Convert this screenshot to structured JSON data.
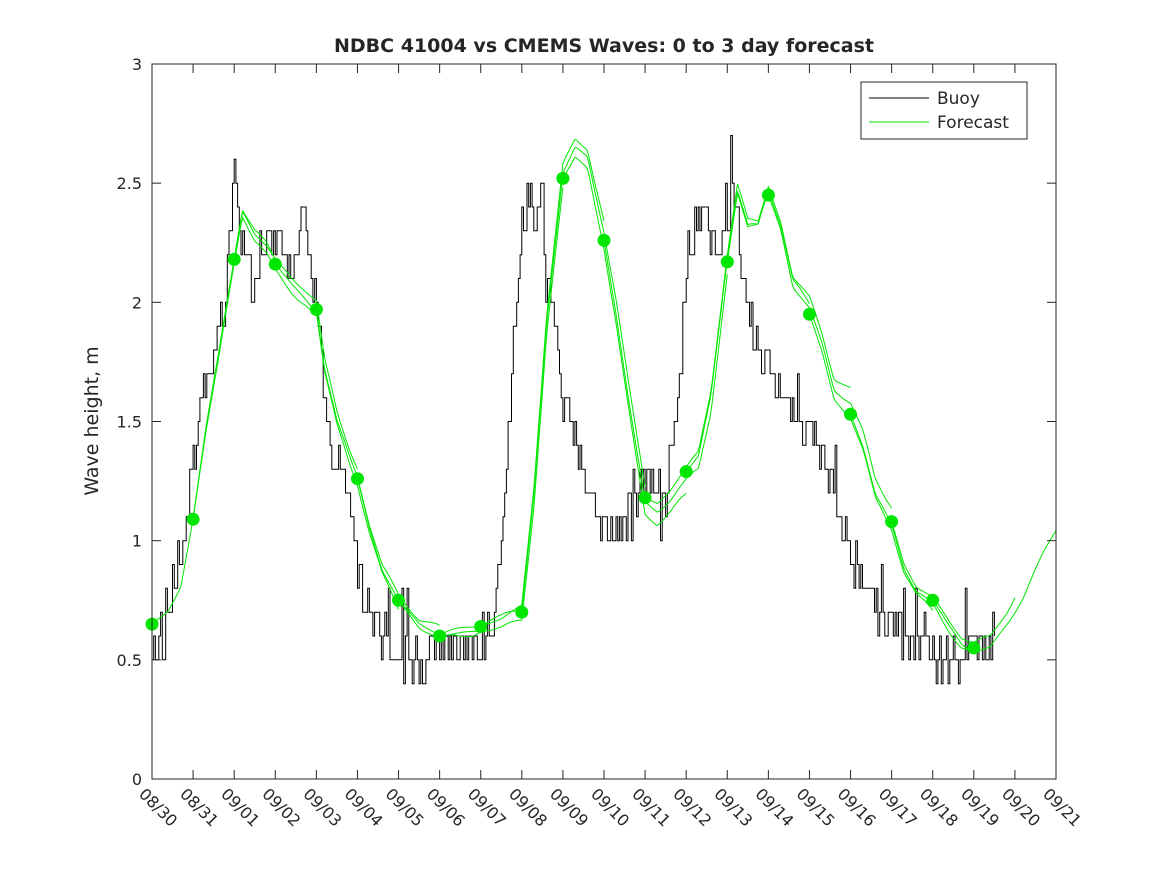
{
  "chart_data": {
    "type": "line",
    "title": "NDBC 41004 vs CMEMS Waves: 0 to 3 day forecast",
    "xlabel": "",
    "ylabel": "Wave height, m",
    "x_ticks": [
      "08/30",
      "08/31",
      "09/01",
      "09/02",
      "09/03",
      "09/04",
      "09/05",
      "09/06",
      "09/07",
      "09/08",
      "09/09",
      "09/10",
      "09/11",
      "09/12",
      "09/13",
      "09/14",
      "09/15",
      "09/16",
      "09/17",
      "09/18",
      "09/19",
      "09/20",
      "09/21"
    ],
    "x_range_days": [
      0,
      22
    ],
    "ylim": [
      0,
      3
    ],
    "y_ticks": [
      0,
      0.5,
      1,
      1.5,
      2,
      2.5,
      3
    ],
    "grid": false,
    "legend": {
      "placement": "top-right",
      "entries": [
        {
          "label": "Buoy",
          "color": "#000000"
        },
        {
          "label": "Forecast",
          "color": "#00e600"
        }
      ]
    },
    "colors": {
      "buoy": "#000000",
      "forecast": "#00e600",
      "axes": "#262626"
    },
    "buoy_anchors": [
      [
        0.0,
        0.55
      ],
      [
        0.3,
        0.6
      ],
      [
        0.5,
        0.8
      ],
      [
        0.75,
        1.0
      ],
      [
        0.95,
        1.3
      ],
      [
        1.2,
        1.6
      ],
      [
        1.5,
        1.75
      ],
      [
        1.75,
        1.95
      ],
      [
        1.9,
        2.3
      ],
      [
        2.0,
        2.6
      ],
      [
        2.15,
        2.3
      ],
      [
        2.3,
        2.2
      ],
      [
        2.45,
        2.05
      ],
      [
        2.6,
        2.1
      ],
      [
        2.8,
        2.25
      ],
      [
        2.95,
        2.3
      ],
      [
        3.15,
        2.25
      ],
      [
        3.3,
        2.1
      ],
      [
        3.5,
        2.2
      ],
      [
        3.6,
        2.3
      ],
      [
        3.75,
        2.35
      ],
      [
        3.9,
        2.05
      ],
      [
        4.1,
        1.9
      ],
      [
        4.2,
        1.6
      ],
      [
        4.4,
        1.4
      ],
      [
        4.6,
        1.3
      ],
      [
        4.8,
        1.1
      ],
      [
        5.0,
        0.9
      ],
      [
        5.2,
        0.75
      ],
      [
        5.45,
        0.65
      ],
      [
        5.7,
        0.6
      ],
      [
        6.0,
        0.55
      ],
      [
        6.3,
        0.5
      ],
      [
        6.7,
        0.5
      ],
      [
        7.0,
        0.55
      ],
      [
        7.5,
        0.55
      ],
      [
        8.0,
        0.55
      ],
      [
        8.3,
        0.6
      ],
      [
        8.5,
        1.0
      ],
      [
        8.7,
        1.6
      ],
      [
        8.85,
        2.0
      ],
      [
        9.0,
        2.35
      ],
      [
        9.2,
        2.45
      ],
      [
        9.45,
        2.3
      ],
      [
        9.6,
        2.1
      ],
      [
        9.8,
        1.9
      ],
      [
        9.95,
        1.65
      ],
      [
        10.2,
        1.45
      ],
      [
        10.5,
        1.3
      ],
      [
        10.8,
        1.15
      ],
      [
        11.0,
        1.05
      ],
      [
        11.3,
        1.05
      ],
      [
        11.6,
        1.1
      ],
      [
        11.9,
        1.2
      ],
      [
        12.1,
        1.25
      ],
      [
        12.4,
        1.1
      ],
      [
        12.6,
        1.3
      ],
      [
        12.8,
        1.6
      ],
      [
        13.0,
        2.1
      ],
      [
        13.2,
        2.3
      ],
      [
        13.4,
        2.45
      ],
      [
        13.6,
        2.3
      ],
      [
        13.8,
        2.25
      ],
      [
        14.0,
        2.3
      ],
      [
        14.15,
        2.55
      ],
      [
        14.3,
        2.2
      ],
      [
        14.5,
        2.0
      ],
      [
        14.7,
        1.85
      ],
      [
        14.9,
        1.75
      ],
      [
        15.1,
        1.7
      ],
      [
        15.3,
        1.6
      ],
      [
        15.5,
        1.55
      ],
      [
        15.7,
        1.5
      ],
      [
        15.9,
        1.48
      ],
      [
        16.1,
        1.45
      ],
      [
        16.35,
        1.35
      ],
      [
        16.6,
        1.2
      ],
      [
        16.8,
        1.05
      ],
      [
        17.0,
        0.95
      ],
      [
        17.2,
        0.85
      ],
      [
        17.5,
        0.75
      ],
      [
        17.8,
        0.7
      ],
      [
        18.1,
        0.65
      ],
      [
        18.4,
        0.6
      ],
      [
        18.7,
        0.55
      ],
      [
        19.0,
        0.5
      ],
      [
        19.3,
        0.5
      ],
      [
        19.6,
        0.5
      ],
      [
        19.9,
        0.55
      ],
      [
        20.2,
        0.6
      ],
      [
        20.5,
        0.6
      ]
    ],
    "forecast_anchors": [
      [
        0.0,
        0.65
      ],
      [
        0.4,
        0.7
      ],
      [
        0.7,
        0.8
      ],
      [
        1.0,
        1.09
      ],
      [
        1.3,
        1.45
      ],
      [
        1.6,
        1.75
      ],
      [
        2.0,
        2.18
      ],
      [
        2.2,
        2.38
      ],
      [
        2.5,
        2.28
      ],
      [
        2.8,
        2.22
      ],
      [
        3.0,
        2.16
      ],
      [
        3.4,
        2.08
      ],
      [
        3.7,
        2.03
      ],
      [
        4.0,
        1.97
      ],
      [
        4.2,
        1.72
      ],
      [
        4.5,
        1.5
      ],
      [
        4.8,
        1.35
      ],
      [
        5.0,
        1.26
      ],
      [
        5.3,
        1.05
      ],
      [
        5.6,
        0.88
      ],
      [
        6.0,
        0.75
      ],
      [
        6.5,
        0.65
      ],
      [
        7.0,
        0.6
      ],
      [
        7.5,
        0.62
      ],
      [
        8.0,
        0.64
      ],
      [
        8.5,
        0.66
      ],
      [
        9.0,
        0.7
      ],
      [
        9.3,
        1.2
      ],
      [
        9.6,
        1.9
      ],
      [
        10.0,
        2.52
      ],
      [
        10.3,
        2.62
      ],
      [
        10.6,
        2.58
      ],
      [
        11.0,
        2.26
      ],
      [
        11.3,
        1.95
      ],
      [
        11.6,
        1.6
      ],
      [
        12.0,
        1.18
      ],
      [
        12.3,
        1.15
      ],
      [
        12.6,
        1.2
      ],
      [
        13.0,
        1.29
      ],
      [
        13.3,
        1.35
      ],
      [
        13.6,
        1.6
      ],
      [
        14.0,
        2.17
      ],
      [
        14.25,
        2.45
      ],
      [
        14.5,
        2.3
      ],
      [
        14.75,
        2.3
      ],
      [
        15.0,
        2.45
      ],
      [
        15.3,
        2.3
      ],
      [
        15.6,
        2.05
      ],
      [
        16.0,
        1.95
      ],
      [
        16.3,
        1.8
      ],
      [
        16.6,
        1.6
      ],
      [
        17.0,
        1.53
      ],
      [
        17.3,
        1.4
      ],
      [
        17.6,
        1.2
      ],
      [
        18.0,
        1.08
      ],
      [
        18.3,
        0.9
      ],
      [
        18.6,
        0.8
      ],
      [
        19.0,
        0.75
      ],
      [
        19.4,
        0.65
      ],
      [
        19.7,
        0.58
      ],
      [
        20.0,
        0.55
      ],
      [
        20.4,
        0.57
      ],
      [
        20.8,
        0.68
      ],
      [
        21.2,
        0.8
      ],
      [
        21.6,
        0.95
      ],
      [
        22.0,
        1.1
      ]
    ],
    "forecast_runs": [
      {
        "start": 0,
        "end": 3,
        "offset": 0.02
      },
      {
        "start": 1,
        "end": 4,
        "offset": -0.04
      },
      {
        "start": 2,
        "end": 5,
        "offset": 0.05
      },
      {
        "start": 3,
        "end": 6,
        "offset": -0.03
      },
      {
        "start": 4,
        "end": 7,
        "offset": 0.03
      },
      {
        "start": 5,
        "end": 8,
        "offset": -0.02
      },
      {
        "start": 6,
        "end": 9,
        "offset": 0.02
      },
      {
        "start": 7,
        "end": 10,
        "offset": -0.05
      },
      {
        "start": 8,
        "end": 11,
        "offset": 0.08
      },
      {
        "start": 9,
        "end": 12,
        "offset": 0.06
      },
      {
        "start": 10,
        "end": 13,
        "offset": -0.1
      },
      {
        "start": 11,
        "end": 14,
        "offset": -0.06
      },
      {
        "start": 12,
        "end": 15,
        "offset": 0.05
      },
      {
        "start": 13,
        "end": 16,
        "offset": 0.04
      },
      {
        "start": 14,
        "end": 17,
        "offset": 0.1
      },
      {
        "start": 15,
        "end": 18,
        "offset": 0.07
      },
      {
        "start": 16,
        "end": 19,
        "offset": -0.04
      },
      {
        "start": 17,
        "end": 20,
        "offset": -0.03
      },
      {
        "start": 18,
        "end": 21,
        "offset": 0.03
      },
      {
        "start": 19,
        "end": 22,
        "offset": -0.05
      }
    ],
    "daily_markers": [
      {
        "x": 0,
        "y": 0.65
      },
      {
        "x": 1,
        "y": 1.09
      },
      {
        "x": 2,
        "y": 2.18
      },
      {
        "x": 3,
        "y": 2.16
      },
      {
        "x": 4,
        "y": 1.97
      },
      {
        "x": 5,
        "y": 1.26
      },
      {
        "x": 6,
        "y": 0.75
      },
      {
        "x": 7,
        "y": 0.6
      },
      {
        "x": 8,
        "y": 0.64
      },
      {
        "x": 9,
        "y": 0.7
      },
      {
        "x": 10,
        "y": 2.52
      },
      {
        "x": 11,
        "y": 2.26
      },
      {
        "x": 12,
        "y": 1.18
      },
      {
        "x": 13,
        "y": 1.29
      },
      {
        "x": 14,
        "y": 2.17
      },
      {
        "x": 15,
        "y": 2.45
      },
      {
        "x": 16,
        "y": 1.95
      },
      {
        "x": 17,
        "y": 1.53
      },
      {
        "x": 18,
        "y": 1.08
      },
      {
        "x": 19,
        "y": 0.75
      },
      {
        "x": 20,
        "y": 0.55
      }
    ]
  }
}
